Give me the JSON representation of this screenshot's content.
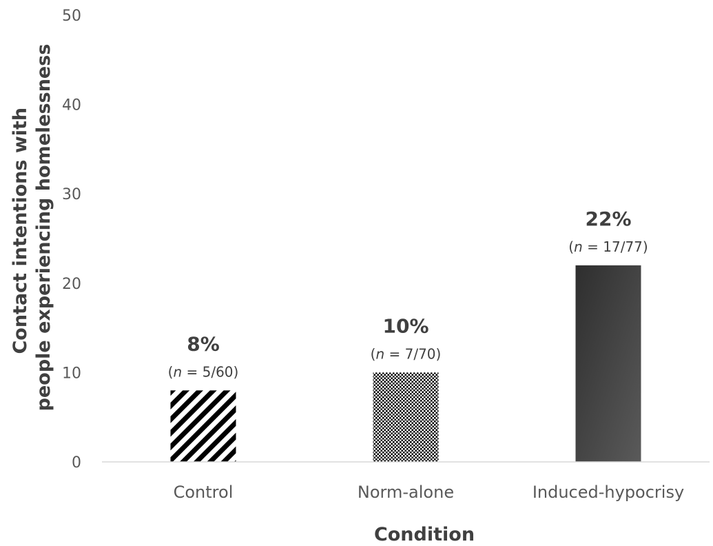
{
  "chart_data": {
    "type": "bar",
    "xlabel": "Condition",
    "ylabel": [
      "Contact intentions with",
      "people experiencing homelessness"
    ],
    "ylim": [
      0,
      50
    ],
    "yticks": [
      0,
      10,
      20,
      30,
      40,
      50
    ],
    "grid": false,
    "categories": [
      "Control",
      "Norm-alone",
      "Induced-hypocrisy"
    ],
    "values": [
      8,
      10,
      22
    ],
    "value_labels": [
      "8%",
      "10%",
      "22%"
    ],
    "n_prefix": "n",
    "n_labels": [
      " = 5/60",
      " = 7/70",
      " = 17/77"
    ],
    "bar_fills": [
      "diagonal-stripes",
      "checker-dots",
      "dark-gradient"
    ],
    "colors": {
      "stripe": "#000000",
      "dark_start": "#2e2e2e",
      "dark_end": "#5a5a5a",
      "axis": "#d9d9d9"
    }
  }
}
